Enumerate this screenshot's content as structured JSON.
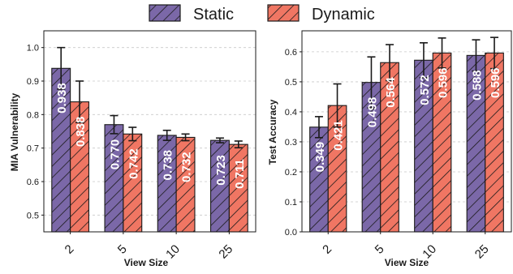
{
  "legend": {
    "placement": "top-center",
    "entries": [
      {
        "name": "Static",
        "color": "#7b68a8",
        "hatch": "diagonal"
      },
      {
        "name": "Dynamic",
        "color": "#f07663",
        "hatch": "diagonal"
      }
    ]
  },
  "chart_data": [
    {
      "type": "bar",
      "title": "",
      "xlabel": "View Size",
      "ylabel": "MIA Vulnerability",
      "categories": [
        "2",
        "5",
        "10",
        "25"
      ],
      "ylim": [
        0.45,
        1.05
      ],
      "yticks": [
        0.5,
        0.6,
        0.7,
        0.8,
        0.9,
        1.0
      ],
      "ytick_labels": [
        "0.5",
        "0.6",
        "0.7",
        "0.8",
        "0.9",
        "1.0"
      ],
      "grid": "horizontal-dashed",
      "series": [
        {
          "name": "Static",
          "values": [
            0.938,
            0.77,
            0.738,
            0.723
          ],
          "errors": [
            0.062,
            0.027,
            0.015,
            0.007
          ],
          "labels": [
            "0.938",
            "0.770",
            "0.738",
            "0.723"
          ]
        },
        {
          "name": "Dynamic",
          "values": [
            0.838,
            0.742,
            0.732,
            0.711
          ],
          "errors": [
            0.062,
            0.02,
            0.01,
            0.01
          ],
          "labels": [
            "0.838",
            "0.742",
            "0.732",
            "0.711"
          ]
        }
      ]
    },
    {
      "type": "bar",
      "title": "",
      "xlabel": "View Size",
      "ylabel": "Test Accuracy",
      "categories": [
        "2",
        "5",
        "10",
        "25"
      ],
      "ylim": [
        0.0,
        0.67
      ],
      "yticks": [
        0.0,
        0.1,
        0.2,
        0.3,
        0.4,
        0.5,
        0.6
      ],
      "ytick_labels": [
        "0.0",
        "0.1",
        "0.2",
        "0.3",
        "0.4",
        "0.5",
        "0.6"
      ],
      "grid": "horizontal-dashed",
      "series": [
        {
          "name": "Static",
          "values": [
            0.349,
            0.498,
            0.572,
            0.588
          ],
          "errors": [
            0.035,
            0.085,
            0.058,
            0.052
          ],
          "labels": [
            "0.349",
            "0.498",
            "0.572",
            "0.588"
          ]
        },
        {
          "name": "Dynamic",
          "values": [
            0.421,
            0.564,
            0.596,
            0.596
          ],
          "errors": [
            0.072,
            0.06,
            0.05,
            0.052
          ],
          "labels": [
            "0.421",
            "0.564",
            "0.596",
            "0.596"
          ]
        }
      ]
    }
  ]
}
